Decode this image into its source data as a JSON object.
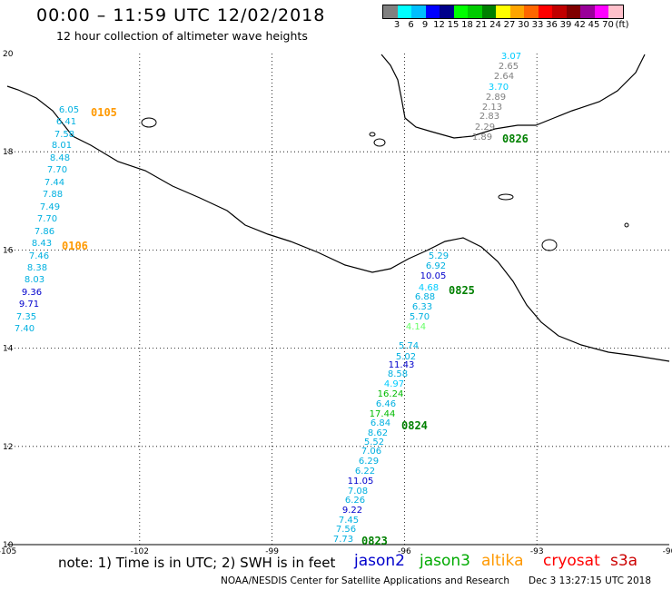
{
  "header": {
    "title": "00:00 – 11:59 UTC 12/02/2018",
    "subtitle": "12 hour collection of altimeter wave heights"
  },
  "colorbar": {
    "colors": [
      "#808080",
      "#00ffff",
      "#00bfff",
      "#0000ff",
      "#00008b",
      "#00ff00",
      "#00cc00",
      "#008000",
      "#ffff00",
      "#ffa500",
      "#ff6600",
      "#ff0000",
      "#c00000",
      "#800000",
      "#990099",
      "#ff00ff",
      "#ffc0cb"
    ],
    "labels": [
      "3",
      "6",
      "9",
      "12",
      "15",
      "18",
      "21",
      "24",
      "27",
      "30",
      "33",
      "36",
      "39",
      "42",
      "45",
      "70",
      "(ft)"
    ]
  },
  "map": {
    "lat_ticks": [
      {
        "label": "20",
        "value": 20
      },
      {
        "label": "18",
        "value": 18
      },
      {
        "label": "16",
        "value": 16
      },
      {
        "label": "14",
        "value": 14
      },
      {
        "label": "12",
        "value": 12
      },
      {
        "label": "10",
        "value": 10
      }
    ],
    "lon_ticks": [
      {
        "label": "-105",
        "value": -105
      },
      {
        "label": "-102",
        "value": -102
      },
      {
        "label": "-99",
        "value": -99
      },
      {
        "label": "-96",
        "value": -96
      },
      {
        "label": "-93",
        "value": -93
      },
      {
        "label": "-90",
        "value": -90
      }
    ],
    "pass_times": [
      {
        "label": "0105",
        "color": "#ff9900"
      },
      {
        "label": "0106",
        "color": "#ff9900"
      },
      {
        "label": "0826",
        "color": "#008000"
      },
      {
        "label": "0825",
        "color": "#008000"
      },
      {
        "label": "0824",
        "color": "#008000"
      },
      {
        "label": "0823",
        "color": "#008000"
      }
    ],
    "tracks": [
      {
        "name": "track-west",
        "readings": [
          {
            "text": "6.05",
            "color": "#00b0e0"
          },
          {
            "text": "6.41",
            "color": "#00b0e0"
          },
          {
            "text": "7.58",
            "color": "#00b0e0"
          },
          {
            "text": "8.01",
            "color": "#00b0e0"
          },
          {
            "text": "8.48",
            "color": "#00b0e0"
          },
          {
            "text": "7.70",
            "color": "#00b0e0"
          },
          {
            "text": "7.44",
            "color": "#00b0e0"
          },
          {
            "text": "7.88",
            "color": "#00b0e0"
          },
          {
            "text": "7.49",
            "color": "#00b0e0"
          },
          {
            "text": "7.70",
            "color": "#00b0e0"
          },
          {
            "text": "7.86",
            "color": "#00b0e0"
          },
          {
            "text": "8.43",
            "color": "#00b0e0"
          },
          {
            "text": "7.46",
            "color": "#00b0e0"
          },
          {
            "text": "8.38",
            "color": "#00b0e0"
          },
          {
            "text": "8.03",
            "color": "#00b0e0"
          },
          {
            "text": "9.36",
            "color": "#0000cc"
          },
          {
            "text": "9.71",
            "color": "#0000cc"
          },
          {
            "text": "7.35",
            "color": "#00b0e0"
          },
          {
            "text": "7.40",
            "color": "#00b0e0"
          }
        ]
      },
      {
        "name": "track-northeast",
        "readings": [
          {
            "text": "3.07",
            "color": "#00ccff"
          },
          {
            "text": "2.65",
            "color": "#808080"
          },
          {
            "text": "2.64",
            "color": "#808080"
          },
          {
            "text": "3.70",
            "color": "#00ccff"
          },
          {
            "text": "2.89",
            "color": "#808080"
          },
          {
            "text": "2.13",
            "color": "#808080"
          },
          {
            "text": "2.83",
            "color": "#808080"
          },
          {
            "text": "2.29",
            "color": "#808080"
          },
          {
            "text": "1.89",
            "color": "#808080"
          }
        ]
      },
      {
        "name": "track-south",
        "readings": [
          {
            "text": "5.29",
            "color": "#00b0e0"
          },
          {
            "text": "6.92",
            "color": "#00b0e0"
          },
          {
            "text": "10.05",
            "color": "#0000cc"
          },
          {
            "text": "4.68",
            "color": "#00ccff"
          },
          {
            "text": "6.88",
            "color": "#00b0e0"
          },
          {
            "text": "6.33",
            "color": "#00b0e0"
          },
          {
            "text": "5.70",
            "color": "#00b0e0"
          },
          {
            "text": "4.14",
            "color": "#66ff66"
          },
          {
            "text": "5.74",
            "color": "#00b0e0"
          },
          {
            "text": "5.02",
            "color": "#00b0e0"
          },
          {
            "text": "11.43",
            "color": "#0000cc"
          },
          {
            "text": "8.58",
            "color": "#00b0e0"
          },
          {
            "text": "4.97",
            "color": "#00ccff"
          },
          {
            "text": "16.24",
            "color": "#00bb00"
          },
          {
            "text": "6.46",
            "color": "#00b0e0"
          },
          {
            "text": "17.44",
            "color": "#00bb00"
          },
          {
            "text": "6.84",
            "color": "#00b0e0"
          },
          {
            "text": "8.62",
            "color": "#00b0e0"
          },
          {
            "text": "5.52",
            "color": "#00b0e0"
          },
          {
            "text": "7.06",
            "color": "#00b0e0"
          },
          {
            "text": "6.29",
            "color": "#00b0e0"
          },
          {
            "text": "6.22",
            "color": "#00b0e0"
          },
          {
            "text": "11.05",
            "color": "#0000cc"
          },
          {
            "text": "7.08",
            "color": "#00b0e0"
          },
          {
            "text": "6.26",
            "color": "#00b0e0"
          },
          {
            "text": "9.22",
            "color": "#0000cc"
          },
          {
            "text": "7.45",
            "color": "#00b0e0"
          },
          {
            "text": "7.56",
            "color": "#00b0e0"
          },
          {
            "text": "7.73",
            "color": "#00b0e0"
          }
        ]
      }
    ]
  },
  "footer": {
    "note": "note: 1) Time is in UTC; 2) SWH is in feet",
    "legend": [
      {
        "label": "jason2",
        "color": "#0000cc"
      },
      {
        "label": "jason3",
        "color": "#00aa00"
      },
      {
        "label": "altika",
        "color": "#ff9900"
      },
      {
        "label": "cryosat",
        "color": "#ff0000"
      },
      {
        "label": "s3a",
        "color": "#cc0000"
      }
    ],
    "credit": "NOAA/NESDIS Center for Satellite Applications and Research",
    "generated": "Dec  3 13:27:15 UTC 2018"
  }
}
